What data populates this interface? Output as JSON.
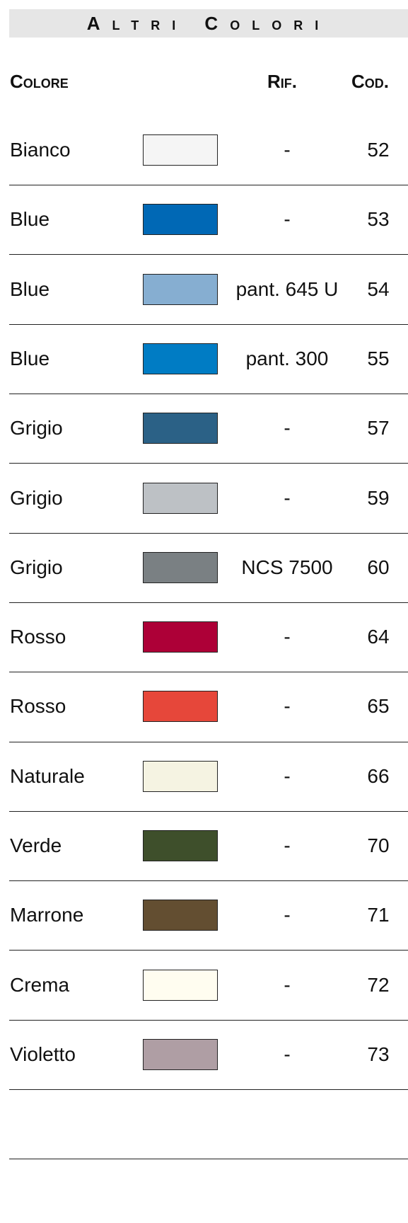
{
  "header": {
    "title": "Altri Colori"
  },
  "table": {
    "columns": [
      "Colore",
      "Rif.",
      "Cod."
    ],
    "rows": [
      {
        "name": "Bianco",
        "swatch": "#f5f5f5",
        "ref": "-",
        "code": "52"
      },
      {
        "name": "Blue",
        "swatch": "#0068b5",
        "ref": "-",
        "code": "53"
      },
      {
        "name": "Blue",
        "swatch": "#86aed1",
        "ref": "pant. 645 U",
        "code": "54"
      },
      {
        "name": "Blue",
        "swatch": "#007cc4",
        "ref": "pant. 300",
        "code": "55"
      },
      {
        "name": "Grigio",
        "swatch": "#2b6186",
        "ref": "-",
        "code": "57"
      },
      {
        "name": "Grigio",
        "swatch": "#bdc1c5",
        "ref": "-",
        "code": "59"
      },
      {
        "name": "Grigio",
        "swatch": "#7a8083",
        "ref": "NCS 7500",
        "code": "60"
      },
      {
        "name": "Rosso",
        "swatch": "#ad0037",
        "ref": "-",
        "code": "64"
      },
      {
        "name": "Rosso",
        "swatch": "#e6473a",
        "ref": "-",
        "code": "65"
      },
      {
        "name": "Naturale",
        "swatch": "#f5f3e2",
        "ref": "-",
        "code": "66"
      },
      {
        "name": "Verde",
        "swatch": "#3e4f2b",
        "ref": "-",
        "code": "70"
      },
      {
        "name": "Marrone",
        "swatch": "#634e31",
        "ref": "-",
        "code": "71"
      },
      {
        "name": "Crema",
        "swatch": "#fffdf0",
        "ref": "-",
        "code": "72"
      },
      {
        "name": "Violetto",
        "swatch": "#af9ea4",
        "ref": "-",
        "code": "73"
      }
    ]
  }
}
